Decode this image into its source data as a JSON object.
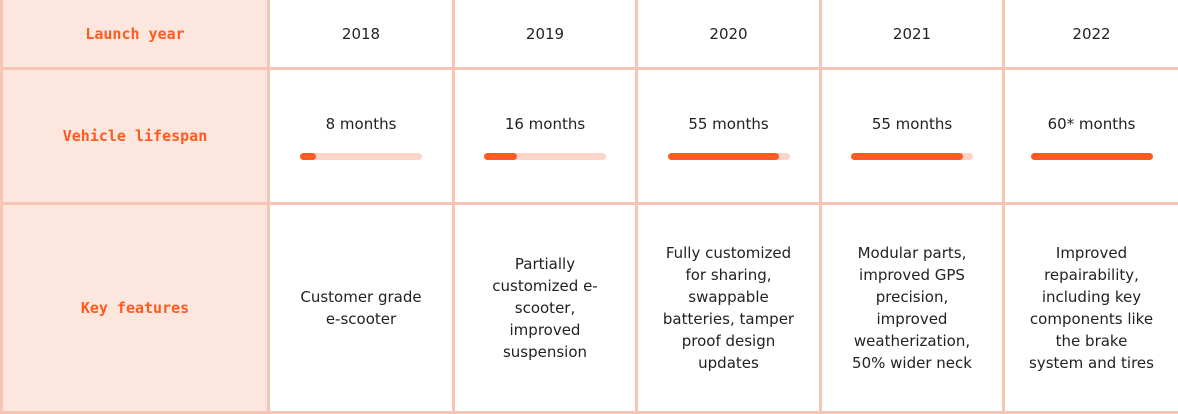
{
  "table": {
    "row_labels": [
      "Launch year",
      "Vehicle lifespan",
      "Key features"
    ],
    "years": [
      "2018",
      "2019",
      "2020",
      "2021",
      "2022"
    ],
    "lifespan_labels": [
      "8 months",
      "16 months",
      "55 months",
      "55 months",
      "60* months"
    ],
    "lifespan_values": [
      8,
      16,
      55,
      55,
      60
    ],
    "lifespan_xlim": [
      0,
      60
    ],
    "features": [
      "Customer grade e-scooter",
      "Partially customized e-scooter, improved suspension",
      "Fully customized for sharing, swappable batteries, tamper proof design updates",
      "Modular parts, improved GPS precision, improved weatherization, 50% wider neck",
      "Improved repairability, including key components like the brake system and tires"
    ]
  }
}
